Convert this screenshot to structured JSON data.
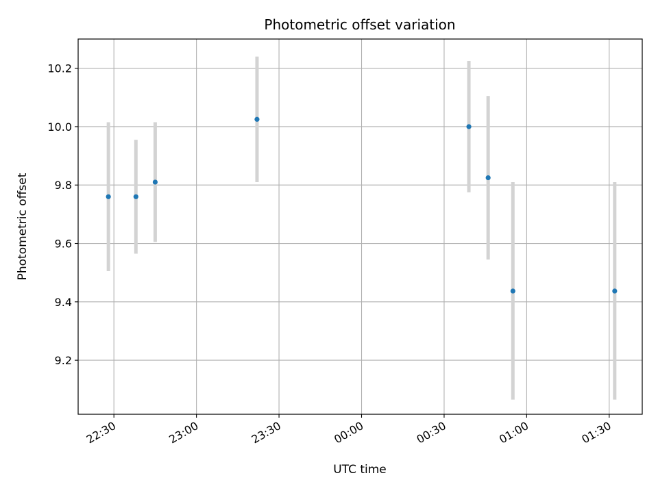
{
  "chart_data": {
    "type": "scatter",
    "title": "Photometric offset variation",
    "xlabel": "UTC time",
    "ylabel": "Photometric offset",
    "x_unit": "time of day (UTC)",
    "xlim": [
      "22:17",
      "01:42"
    ],
    "ylim": [
      9.015,
      10.3
    ],
    "grid": true,
    "x_ticks": [
      {
        "time": "22:30",
        "label": "22:30"
      },
      {
        "time": "23:00",
        "label": "23:00"
      },
      {
        "time": "23:30",
        "label": "23:30"
      },
      {
        "time": "00:00",
        "label": "00:00"
      },
      {
        "time": "00:30",
        "label": "00:30"
      },
      {
        "time": "01:00",
        "label": "01:00"
      },
      {
        "time": "01:30",
        "label": "01:30"
      }
    ],
    "y_ticks": [
      9.2,
      9.4,
      9.6,
      9.8,
      10.0,
      10.2
    ],
    "y_tick_labels": [
      "9.2",
      "9.4",
      "9.6",
      "9.8",
      "10.0",
      "10.2"
    ],
    "point_color": "#1f77b4",
    "errorbar_color": "#d3d3d3",
    "points": [
      {
        "time": "22:28",
        "y": 9.76,
        "y_low": 9.505,
        "y_high": 10.015
      },
      {
        "time": "22:38",
        "y": 9.76,
        "y_low": 9.565,
        "y_high": 9.955
      },
      {
        "time": "22:45",
        "y": 9.81,
        "y_low": 9.605,
        "y_high": 10.015
      },
      {
        "time": "23:22",
        "y": 10.025,
        "y_low": 9.81,
        "y_high": 10.24
      },
      {
        "time": "00:39",
        "y": 10.0,
        "y_low": 9.775,
        "y_high": 10.225
      },
      {
        "time": "00:46",
        "y": 9.825,
        "y_low": 9.545,
        "y_high": 10.105
      },
      {
        "time": "00:55",
        "y": 9.437,
        "y_low": 9.065,
        "y_high": 9.81
      },
      {
        "time": "01:32",
        "y": 9.437,
        "y_low": 9.065,
        "y_high": 9.81
      }
    ]
  }
}
